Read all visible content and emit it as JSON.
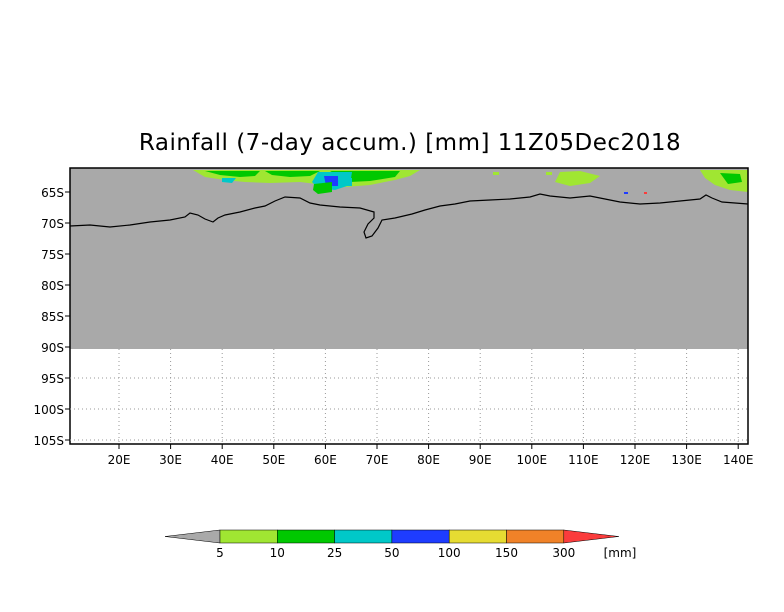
{
  "title": "Rainfall (7-day accum.) [mm] 11Z05Dec2018",
  "map": {
    "lon_labels": [
      "20E",
      "30E",
      "40E",
      "50E",
      "60E",
      "70E",
      "80E",
      "90E",
      "100E",
      "110E",
      "120E",
      "130E",
      "140E"
    ],
    "lat_labels": [
      "65S",
      "70S",
      "75S",
      "80S",
      "85S",
      "90S",
      "95S",
      "100S",
      "105S"
    ],
    "data_region": "gray field from 62S to 90S (no rain/masked)",
    "grid": "dotted",
    "colors": {
      "no_data_gray": "#a9a9a9",
      "coast": "#000000"
    }
  },
  "legend": {
    "unit": "[mm]",
    "labels": [
      "5",
      "10",
      "25",
      "50",
      "100",
      "150",
      "300"
    ],
    "colors": [
      "#a9a9a9",
      "#a0e632",
      "#00c800",
      "#00c8c8",
      "#1e3cff",
      "#e6dc32",
      "#f08228",
      "#fa3c3c"
    ]
  }
}
